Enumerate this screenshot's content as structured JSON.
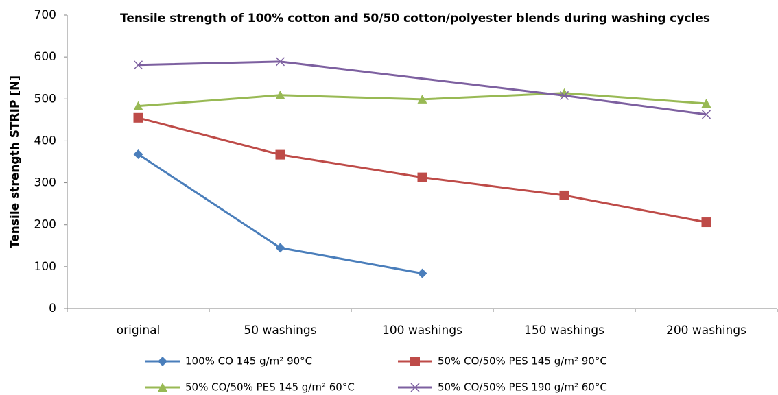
{
  "chart_data": {
    "type": "line",
    "title": "Tensile strength of 100% cotton and 50/50 cotton/polyester blends during washing cycles",
    "y_label": "Tensile strength STRIP [N]",
    "categories": [
      "original",
      "50 washings",
      "100 washings",
      "150 washings",
      "200 washings"
    ],
    "series": [
      {
        "name": "100% CO 145 g/m² 90°C",
        "color": "#4a7ebb",
        "marker": "diamond",
        "values": [
          368,
          145,
          84,
          null,
          null
        ]
      },
      {
        "name": "50% CO/50% PES 145 g/m² 90°C",
        "color": "#be4b48",
        "marker": "square",
        "values": [
          455,
          367,
          313,
          270,
          206
        ]
      },
      {
        "name": "50% CO/50% PES 145 g/m² 60°C",
        "color": "#98b954",
        "marker": "triangle",
        "values": [
          483,
          509,
          499,
          514,
          489
        ]
      },
      {
        "name": "50% CO/50% PES 190 g/m² 60°C",
        "color": "#7d60a0",
        "marker": "x",
        "values": [
          581,
          589,
          null,
          508,
          463
        ]
      }
    ],
    "connect_gaps": true,
    "ylim": [
      0,
      700
    ],
    "yticks": [
      0,
      100,
      200,
      300,
      400,
      500,
      600,
      700
    ],
    "grid": false,
    "legend": "bottom"
  }
}
